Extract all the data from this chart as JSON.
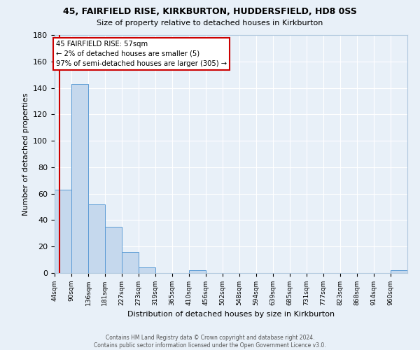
{
  "title": "45, FAIRFIELD RISE, KIRKBURTON, HUDDERSFIELD, HD8 0SS",
  "subtitle": "Size of property relative to detached houses in Kirkburton",
  "xlabel": "Distribution of detached houses by size in Kirkburton",
  "ylabel": "Number of detached properties",
  "bin_labels": [
    "44sqm",
    "90sqm",
    "136sqm",
    "181sqm",
    "227sqm",
    "273sqm",
    "319sqm",
    "365sqm",
    "410sqm",
    "456sqm",
    "502sqm",
    "548sqm",
    "594sqm",
    "639sqm",
    "685sqm",
    "731sqm",
    "777sqm",
    "823sqm",
    "868sqm",
    "914sqm",
    "960sqm"
  ],
  "bar_heights": [
    63,
    143,
    52,
    35,
    16,
    4,
    0,
    0,
    2,
    0,
    0,
    0,
    0,
    0,
    0,
    0,
    0,
    0,
    0,
    0,
    2
  ],
  "bar_color": "#c5d8ed",
  "bar_edge_color": "#5b9bd5",
  "ylim": [
    0,
    180
  ],
  "yticks": [
    0,
    20,
    40,
    60,
    80,
    100,
    120,
    140,
    160,
    180
  ],
  "property_line_x": 57,
  "property_line_color": "#cc0000",
  "annotation_title": "45 FAIRFIELD RISE: 57sqm",
  "annotation_line1": "← 2% of detached houses are smaller (5)",
  "annotation_line2": "97% of semi-detached houses are larger (305) →",
  "annotation_box_color": "#ffffff",
  "annotation_box_edge_color": "#cc0000",
  "footer_line1": "Contains HM Land Registry data © Crown copyright and database right 2024.",
  "footer_line2": "Contains public sector information licensed under the Open Government Licence v3.0.",
  "bin_edges": [
    44,
    90,
    136,
    181,
    227,
    273,
    319,
    365,
    410,
    456,
    502,
    548,
    594,
    639,
    685,
    731,
    777,
    823,
    868,
    914,
    960
  ],
  "background_color": "#e8f0f8",
  "grid_color": "#ffffff"
}
